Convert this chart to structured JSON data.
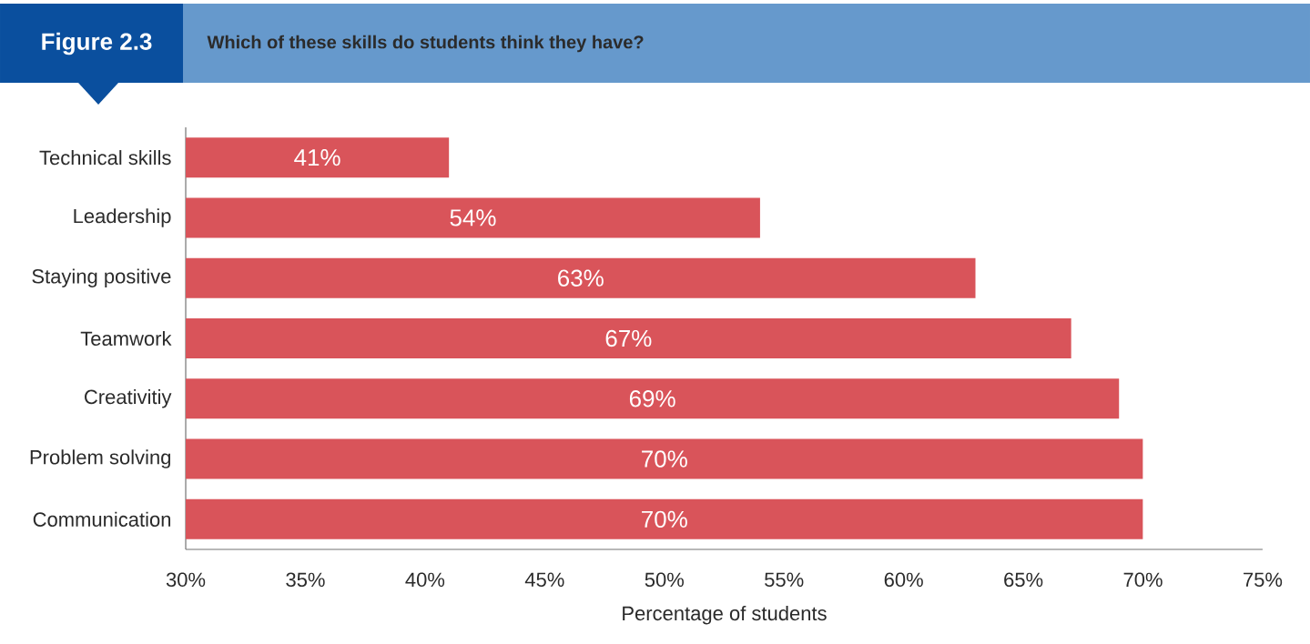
{
  "chart_data": {
    "type": "bar",
    "orientation": "horizontal",
    "title": "Which of these skills do students think they have?",
    "annotations": [
      "Figure 2.3"
    ],
    "xlabel": "Percentage of students",
    "categories": [
      "Technical skills",
      "Leadership",
      "Staying positive",
      "Teamwork",
      "Creativitiy",
      "Problem solving",
      "Communication"
    ],
    "values": [
      41,
      54,
      63,
      67,
      69,
      70,
      70
    ],
    "value_labels": [
      "41%",
      "54%",
      "63%",
      "67%",
      "69%",
      "70%",
      "70%"
    ],
    "color": "#d9545a",
    "xlim": [
      30,
      75
    ],
    "xticks": [
      {
        "value": 30,
        "label": "30%"
      },
      {
        "value": 35,
        "label": "35%"
      },
      {
        "value": 40,
        "label": "40%"
      },
      {
        "value": 45,
        "label": "45%"
      },
      {
        "value": 50,
        "label": "50%"
      },
      {
        "value": 55,
        "label": "55%"
      },
      {
        "value": 60,
        "label": "60%"
      },
      {
        "value": 65,
        "label": "65%"
      },
      {
        "value": 70,
        "label": "70%"
      },
      {
        "value": 75,
        "label": "75%"
      }
    ]
  }
}
